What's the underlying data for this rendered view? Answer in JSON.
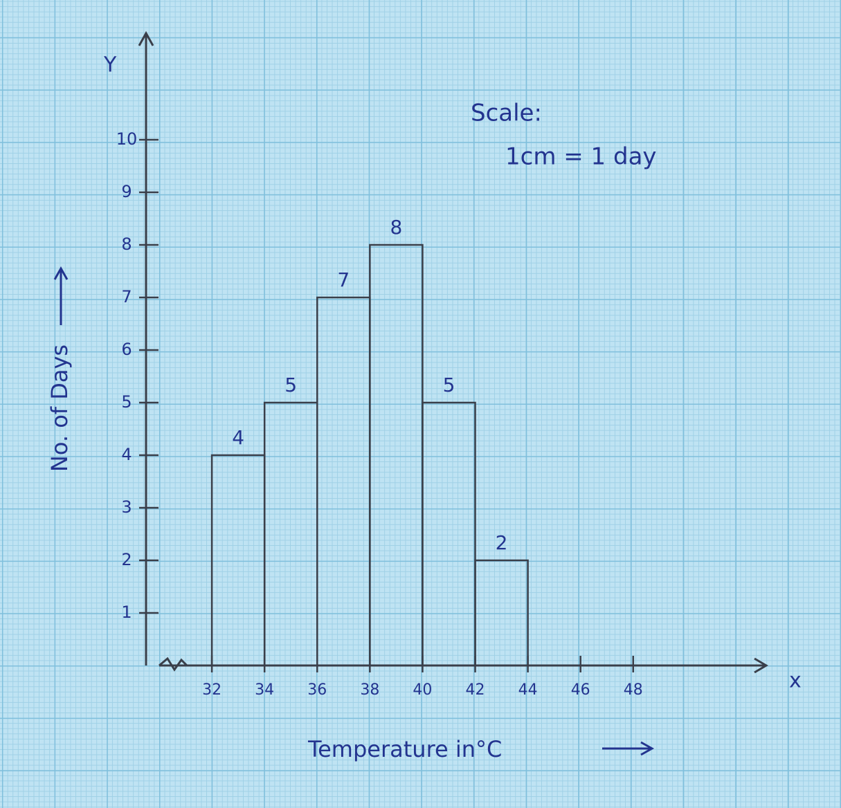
{
  "chart_data": {
    "type": "histogram",
    "annotations": [
      "Scale:",
      "1cm = 1 day"
    ],
    "xlabel": "Temperature in°C",
    "ylabel": "No. of Days",
    "x_axis_name": "x",
    "y_axis_name": "Y",
    "bins": [
      32,
      34,
      36,
      38,
      40,
      42,
      44
    ],
    "values": [
      4,
      5,
      7,
      8,
      5,
      2
    ],
    "color": "#3a3f4a",
    "text_color": "#23348f",
    "xlim": [
      30,
      53
    ],
    "xticks": [
      32,
      34,
      36,
      38,
      40,
      42,
      44,
      46,
      48
    ],
    "ylim": [
      0,
      12
    ],
    "yticks": [
      1,
      2,
      3,
      4,
      5,
      6,
      7,
      8,
      9,
      10
    ]
  }
}
